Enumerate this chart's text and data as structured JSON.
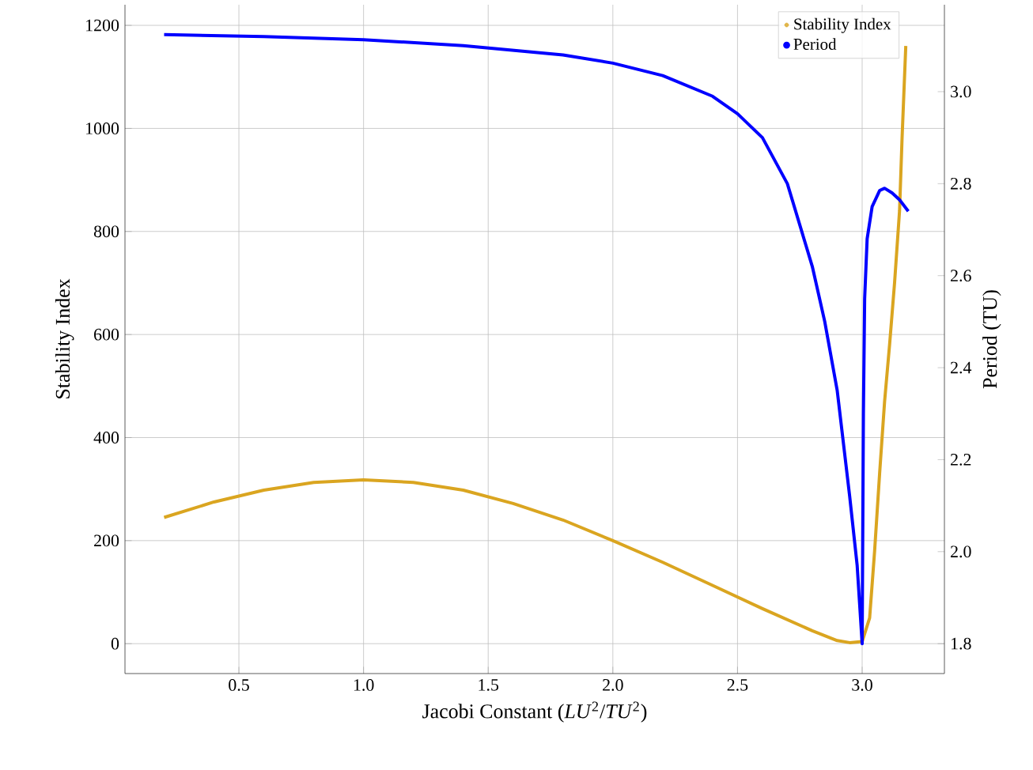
{
  "chart_data": {
    "type": "line",
    "xlabel": "Jacobi Constant (*LU*$^{2}$/*TU*$^{2}$)",
    "ylabel": "Stability Index",
    "y2label": "Period (TU)",
    "xlim": [
      0.043,
      3.33
    ],
    "ylim": [
      -58,
      1240
    ],
    "y2lim": [
      1.735,
      3.189
    ],
    "xticks": [
      0.5,
      {
        "value": 1,
        "label": "1.0"
      },
      1.5,
      {
        "value": 2,
        "label": "2.0"
      },
      2.5,
      {
        "value": 3,
        "label": "3.0"
      }
    ],
    "yticks": [
      0,
      200,
      400,
      600,
      800,
      1000,
      1200
    ],
    "y2ticks": [
      1.8,
      {
        "value": 2,
        "label": "2.0"
      },
      2.2,
      2.4,
      2.6,
      2.8,
      {
        "value": 3,
        "label": "3.0"
      }
    ],
    "grid": true,
    "legend": "top right",
    "marker": "none",
    "series": [
      {
        "name": "Stability Index",
        "color": "#daa520",
        "x": [
          0.2,
          0.4,
          0.6,
          0.8,
          1.0,
          1.2,
          1.4,
          1.6,
          1.8,
          2.0,
          2.2,
          2.4,
          2.6,
          2.8,
          2.9,
          2.95,
          3.0,
          3.03,
          3.05,
          3.07,
          3.09,
          3.11,
          3.13,
          3.15,
          3.16,
          3.175
        ],
        "values": [
          245,
          275,
          298,
          313,
          318,
          313,
          298,
          272,
          240,
          200,
          158,
          113,
          68,
          25,
          6,
          2,
          4,
          50,
          180,
          330,
          470,
          580,
          700,
          840,
          980,
          1160
        ]
      },
      {
        "name": "Period",
        "color": "#0000ff",
        "axis": "y2",
        "x": [
          0.2,
          0.6,
          1.0,
          1.4,
          1.8,
          2.0,
          2.2,
          2.4,
          2.5,
          2.6,
          2.7,
          2.8,
          2.85,
          2.9,
          2.95,
          2.98,
          3.0,
          3.005,
          3.01,
          3.02,
          3.04,
          3.07,
          3.09,
          3.12,
          3.15,
          3.185
        ],
        "values": [
          3.124,
          3.12,
          3.113,
          3.1,
          3.08,
          3.062,
          3.035,
          2.99,
          2.952,
          2.9,
          2.8,
          2.62,
          2.5,
          2.35,
          2.12,
          1.97,
          1.8,
          2.3,
          2.55,
          2.68,
          2.75,
          2.785,
          2.79,
          2.78,
          2.765,
          2.74
        ]
      }
    ]
  }
}
